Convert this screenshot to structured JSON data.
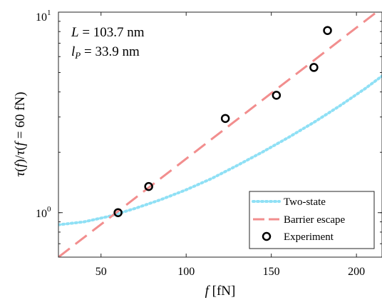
{
  "chart_data": {
    "type": "line",
    "xlabel": "f [fN]",
    "ylabel": "τ(f)/τ(f = 60 fN)",
    "xlim": [
      25,
      215
    ],
    "ylim": [
      0.6,
      10
    ],
    "yscale": "log",
    "grid": false,
    "legend_placement": "bottom-right",
    "annotations": [
      "L = 103.7 nm",
      "l_P = 33.9 nm"
    ],
    "x_ticks": [
      50,
      100,
      150,
      200
    ],
    "y_ticks": [
      {
        "value": 1,
        "label": "10^0"
      },
      {
        "value": 10,
        "label": "10^1"
      }
    ],
    "series": [
      {
        "name": "Two-state",
        "style": "dotted",
        "color": "#8fe0f5",
        "x": [
          25,
          40,
          55,
          70,
          85,
          100,
          115,
          130,
          145,
          160,
          175,
          190,
          205,
          215
        ],
        "y": [
          0.87,
          0.9,
          0.96,
          1.05,
          1.16,
          1.3,
          1.48,
          1.72,
          2.01,
          2.37,
          2.82,
          3.4,
          4.15,
          4.8
        ]
      },
      {
        "name": "Barrier escape",
        "style": "dashed",
        "color": "#f28e8e",
        "x": [
          25,
          215
        ],
        "y": [
          0.6,
          10.5
        ]
      },
      {
        "name": "Experiment",
        "style": "markers",
        "color": "#000000",
        "x": [
          60,
          78,
          123,
          153,
          175,
          183
        ],
        "y": [
          1.0,
          1.35,
          2.95,
          3.85,
          5.3,
          8.1
        ]
      }
    ]
  }
}
